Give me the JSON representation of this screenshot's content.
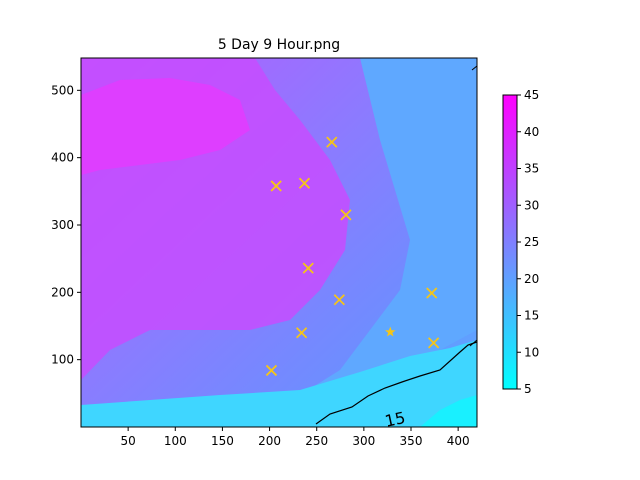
{
  "chart_data": {
    "type": "heatmap",
    "title": "5 Day 9 Hour.png",
    "xlabel": "",
    "ylabel": "",
    "xlim": [
      0,
      420
    ],
    "ylim": [
      0,
      548
    ],
    "x_ticks": [
      50,
      100,
      150,
      200,
      250,
      300,
      350,
      400
    ],
    "y_ticks": [
      100,
      200,
      300,
      400,
      500
    ],
    "colorbar": {
      "min": 5,
      "max": 45,
      "ticks": [
        5,
        10,
        15,
        20,
        25,
        30,
        35,
        40,
        45
      ],
      "colors": [
        "#00ffff",
        "#ff00ff"
      ]
    },
    "contour_label": {
      "text": "15",
      "x": 333,
      "y": 12
    },
    "markers": {
      "color": "#f5c518",
      "crosses": [
        {
          "x": 266,
          "y": 423
        },
        {
          "x": 207,
          "y": 358
        },
        {
          "x": 237,
          "y": 362
        },
        {
          "x": 281,
          "y": 315
        },
        {
          "x": 241,
          "y": 236
        },
        {
          "x": 274,
          "y": 189
        },
        {
          "x": 372,
          "y": 199
        },
        {
          "x": 234,
          "y": 140
        },
        {
          "x": 374,
          "y": 125
        },
        {
          "x": 202,
          "y": 84
        }
      ],
      "stars": [
        {
          "x": 328,
          "y": 141
        }
      ]
    }
  }
}
